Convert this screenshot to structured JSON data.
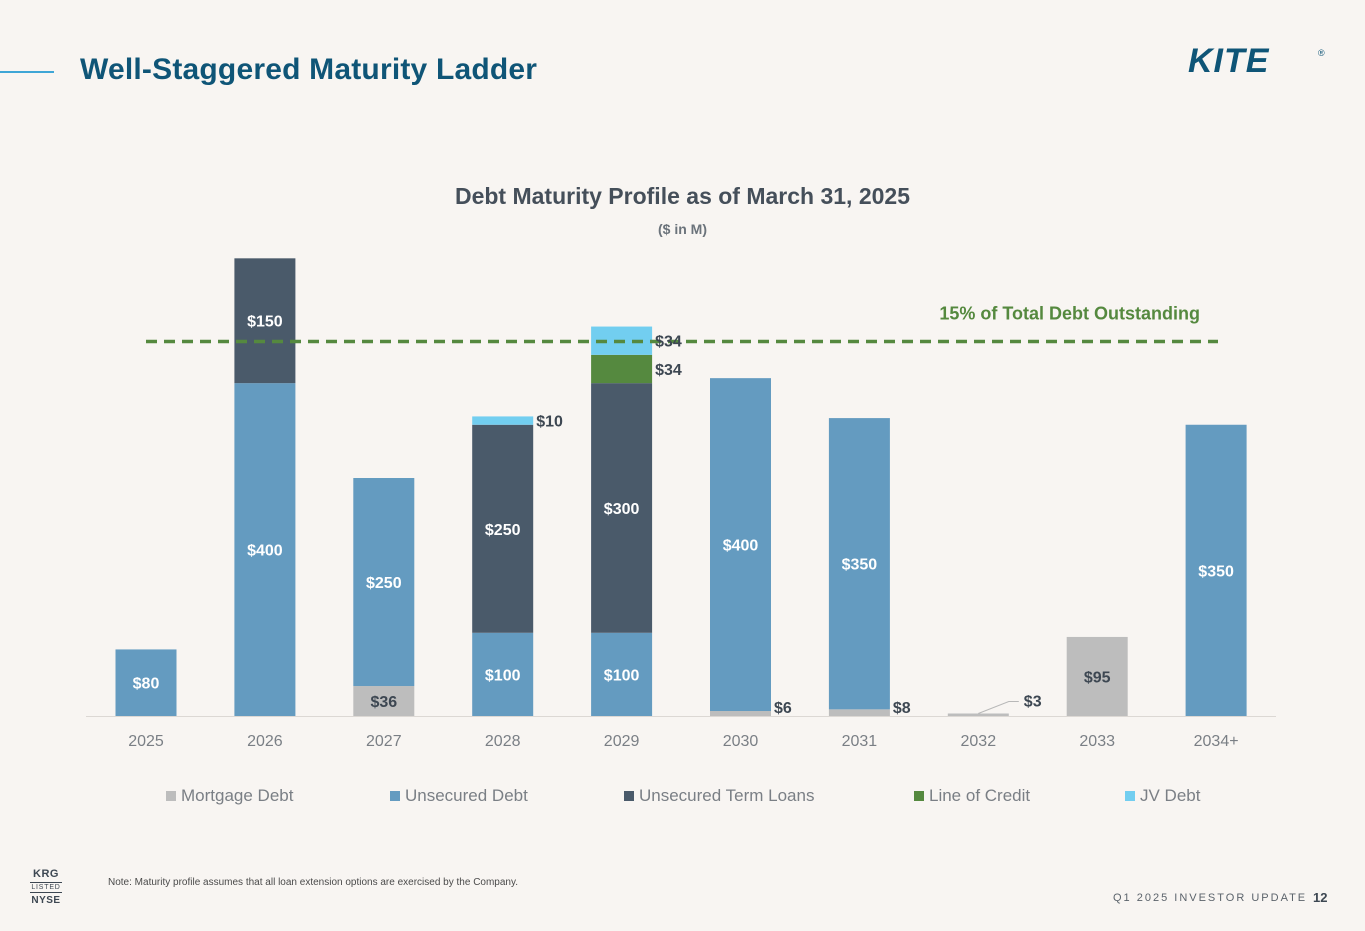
{
  "header": {
    "title": "Well-Staggered Maturity Ladder",
    "logo_text": "KITE",
    "logo_mark": "®"
  },
  "colors": {
    "title": "#0f5577",
    "mortgage": "#bdbdbd",
    "unsecured": "#649bc0",
    "term_loans": "#4a5a6a",
    "line_of_credit": "#55893f",
    "jv": "#72cef0",
    "threshold": "#55893f"
  },
  "chart_data": {
    "type": "bar",
    "stacked": true,
    "title": "Debt Maturity Profile as of March 31, 2025",
    "subtitle": "($ in M)",
    "categories": [
      "2025",
      "2026",
      "2027",
      "2028",
      "2029",
      "2030",
      "2031",
      "2032",
      "2033",
      "2034+"
    ],
    "series": [
      {
        "key": "mortgage",
        "name": "Mortgage Debt",
        "values": [
          0,
          0,
          36,
          0,
          0,
          6,
          8,
          3,
          95,
          0
        ]
      },
      {
        "key": "unsecured",
        "name": "Unsecured Debt",
        "values": [
          80,
          400,
          250,
          100,
          100,
          400,
          350,
          0,
          0,
          350
        ]
      },
      {
        "key": "term_loans",
        "name": "Unsecured Term Loans",
        "values": [
          0,
          150,
          0,
          250,
          300,
          0,
          0,
          0,
          0,
          0
        ]
      },
      {
        "key": "line_of_credit",
        "name": "Line of Credit",
        "values": [
          0,
          0,
          0,
          0,
          34,
          0,
          0,
          0,
          0,
          0
        ]
      },
      {
        "key": "jv",
        "name": "JV Debt",
        "values": [
          0,
          0,
          0,
          10,
          34,
          0,
          0,
          0,
          0,
          0
        ]
      }
    ],
    "data_labels": [
      {
        "category": "2025",
        "series": "unsecured",
        "text": "$80",
        "placement": "inside"
      },
      {
        "category": "2026",
        "series": "unsecured",
        "text": "$400",
        "placement": "inside"
      },
      {
        "category": "2026",
        "series": "term_loans",
        "text": "$150",
        "placement": "inside"
      },
      {
        "category": "2027",
        "series": "mortgage",
        "text": "$36",
        "placement": "inside"
      },
      {
        "category": "2027",
        "series": "unsecured",
        "text": "$250",
        "placement": "inside"
      },
      {
        "category": "2028",
        "series": "unsecured",
        "text": "$100",
        "placement": "inside"
      },
      {
        "category": "2028",
        "series": "term_loans",
        "text": "$250",
        "placement": "inside"
      },
      {
        "category": "2028",
        "series": "jv",
        "text": "$10",
        "placement": "right"
      },
      {
        "category": "2029",
        "series": "unsecured",
        "text": "$100",
        "placement": "inside"
      },
      {
        "category": "2029",
        "series": "term_loans",
        "text": "$300",
        "placement": "inside"
      },
      {
        "category": "2029",
        "series": "line_of_credit",
        "text": "$34",
        "placement": "right"
      },
      {
        "category": "2029",
        "series": "jv",
        "text": "$34",
        "placement": "right"
      },
      {
        "category": "2030",
        "series": "unsecured",
        "text": "$400",
        "placement": "inside"
      },
      {
        "category": "2030",
        "series": "mortgage",
        "text": "$6",
        "placement": "right"
      },
      {
        "category": "2031",
        "series": "unsecured",
        "text": "$350",
        "placement": "inside"
      },
      {
        "category": "2031",
        "series": "mortgage",
        "text": "$8",
        "placement": "right"
      },
      {
        "category": "2032",
        "series": "mortgage",
        "text": "$3",
        "placement": "leader"
      },
      {
        "category": "2033",
        "series": "mortgage",
        "text": "$95",
        "placement": "inside"
      },
      {
        "category": "2034+",
        "series": "unsecured",
        "text": "$350",
        "placement": "inside"
      }
    ],
    "threshold": {
      "value": 450,
      "label": "15% of Total Debt Outstanding",
      "style": "dashed"
    },
    "ylim": [
      0,
      560
    ],
    "grid": false,
    "legend_position": "bottom",
    "xlabel": "",
    "ylabel": ""
  },
  "footer": {
    "note": "Note: Maturity profile assumes that all loan extension options are exercised by the Company.",
    "ticker_top": "KRG",
    "ticker_mid": "LISTED",
    "ticker_bottom": "NYSE",
    "label": "Q1 2025 INVESTOR UPDATE",
    "page_number": "12"
  }
}
